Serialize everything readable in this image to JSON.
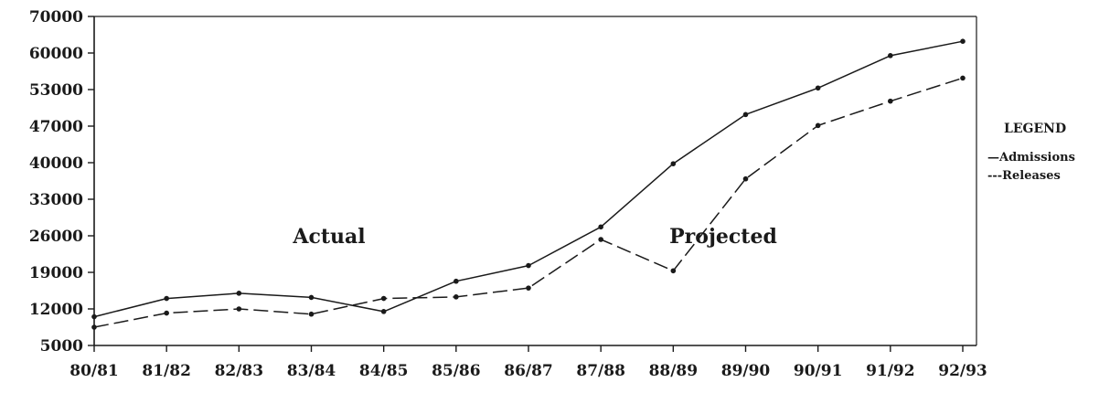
{
  "chart_data": {
    "type": "line",
    "categories": [
      "80/81",
      "81/82",
      "82/83",
      "83/84",
      "84/85",
      "85/86",
      "86/87",
      "87/88",
      "88/89",
      "89/90",
      "90/91",
      "91/92",
      "92/93"
    ],
    "y_ticks": [
      "70000",
      "60000",
      "53000",
      "47000",
      "40000",
      "33000",
      "26000",
      "19000",
      "12000",
      "5000"
    ],
    "series": [
      {
        "name": "Admissions",
        "style": "solid",
        "values": [
          10500,
          14000,
          15000,
          14200,
          11500,
          17300,
          20300,
          27700,
          39800,
          48900,
          53300,
          59500,
          63200
        ]
      },
      {
        "name": "Releases",
        "style": "dashed",
        "values": [
          8500,
          11200,
          12000,
          11000,
          14000,
          14300,
          16000,
          25300,
          19300,
          36900,
          47100,
          51100,
          55200
        ]
      }
    ],
    "annotations": [
      "Actual",
      "Projected"
    ],
    "legend": {
      "title": "LEGEND",
      "items": [
        "—Admissions",
        "---Releases"
      ],
      "placement": "right"
    },
    "grid": false,
    "title": "",
    "xlabel": "",
    "ylabel": ""
  }
}
